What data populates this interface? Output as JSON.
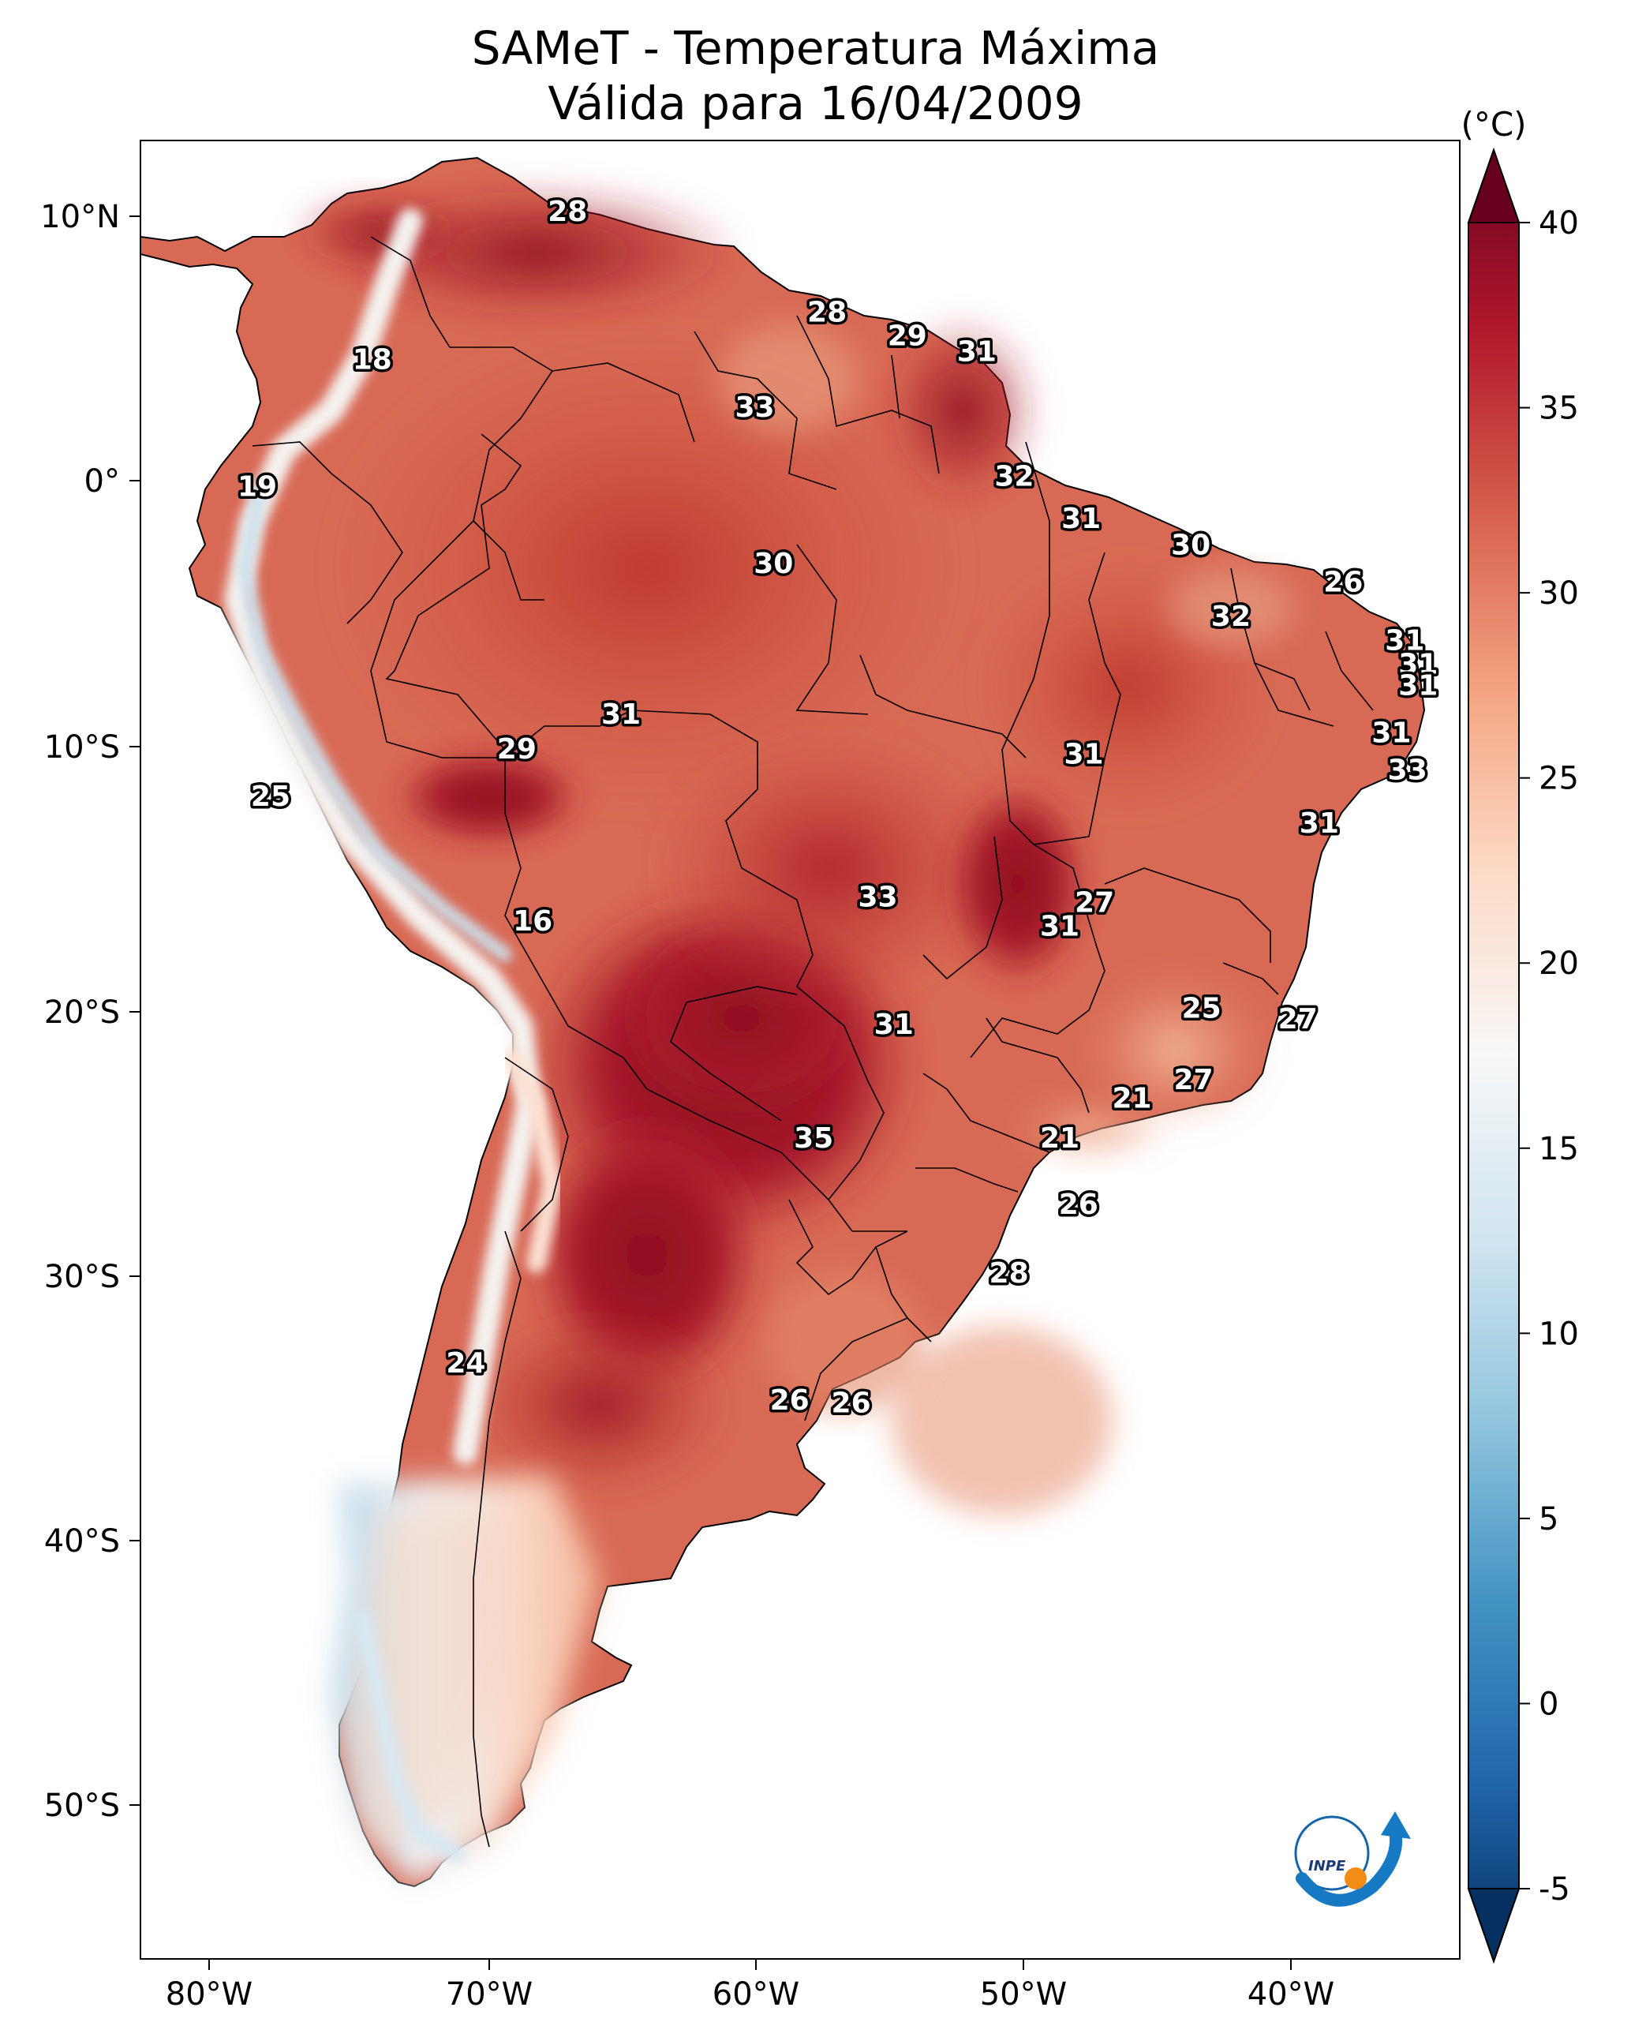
{
  "title": {
    "line1": "SAMeT - Temperatura Máxima",
    "line2": "Válida para 16/04/2009"
  },
  "axes": {
    "lon_ticks": [
      "80°W",
      "70°W",
      "60°W",
      "50°W",
      "40°W"
    ],
    "lat_ticks": [
      "10°N",
      "0°",
      "10°S",
      "20°S",
      "30°S",
      "40°S",
      "50°S"
    ]
  },
  "colorbar": {
    "unit": "(°C)",
    "ticks": [
      "40",
      "35",
      "30",
      "25",
      "20",
      "15",
      "10",
      "5",
      "0",
      "-5"
    ],
    "min": -5,
    "max": 40,
    "colors": [
      "#053061",
      "#2166ac",
      "#4393c3",
      "#92c5de",
      "#d1e5f0",
      "#f7f7f7",
      "#fddbc7",
      "#f4a582",
      "#d6604d",
      "#b2182b",
      "#67001f"
    ]
  },
  "contour_labels": [
    {
      "text": "28",
      "lon": -66.6,
      "lat": 10.2
    },
    {
      "text": "28",
      "lon": -56.9,
      "lat": 6.4
    },
    {
      "text": "29",
      "lon": -53.9,
      "lat": 5.5
    },
    {
      "text": "31",
      "lon": -51.3,
      "lat": 4.9
    },
    {
      "text": "18",
      "lon": -73.9,
      "lat": 4.6
    },
    {
      "text": "33",
      "lon": -59.6,
      "lat": 2.8
    },
    {
      "text": "32",
      "lon": -49.9,
      "lat": 0.2
    },
    {
      "text": "19",
      "lon": -78.2,
      "lat": -0.2
    },
    {
      "text": "31",
      "lon": -47.4,
      "lat": -1.4
    },
    {
      "text": "30",
      "lon": -43.3,
      "lat": -2.4
    },
    {
      "text": "30",
      "lon": -58.9,
      "lat": -3.1
    },
    {
      "text": "26",
      "lon": -37.6,
      "lat": -3.8
    },
    {
      "text": "32",
      "lon": -41.8,
      "lat": -5.1
    },
    {
      "text": "31",
      "lon": -35.3,
      "lat": -6.0
    },
    {
      "text": "31",
      "lon": -34.8,
      "lat": -6.9
    },
    {
      "text": "31",
      "lon": -34.8,
      "lat": -7.7
    },
    {
      "text": "31",
      "lon": -64.6,
      "lat": -8.8
    },
    {
      "text": "31",
      "lon": -35.8,
      "lat": -9.5
    },
    {
      "text": "29",
      "lon": -68.5,
      "lat": -10.1
    },
    {
      "text": "31",
      "lon": -47.3,
      "lat": -10.3
    },
    {
      "text": "33",
      "lon": -35.2,
      "lat": -10.9
    },
    {
      "text": "25",
      "lon": -77.7,
      "lat": -11.9
    },
    {
      "text": "31",
      "lon": -38.5,
      "lat": -12.9
    },
    {
      "text": "33",
      "lon": -55.0,
      "lat": -15.7
    },
    {
      "text": "27",
      "lon": -46.9,
      "lat": -15.9
    },
    {
      "text": "16",
      "lon": -67.9,
      "lat": -16.6
    },
    {
      "text": "31",
      "lon": -48.2,
      "lat": -16.8
    },
    {
      "text": "25",
      "lon": -42.9,
      "lat": -19.9
    },
    {
      "text": "27",
      "lon": -39.3,
      "lat": -20.3
    },
    {
      "text": "31",
      "lon": -54.4,
      "lat": -20.5
    },
    {
      "text": "27",
      "lon": -43.2,
      "lat": -22.6
    },
    {
      "text": "21",
      "lon": -45.5,
      "lat": -23.3
    },
    {
      "text": "35",
      "lon": -57.4,
      "lat": -24.8
    },
    {
      "text": "21",
      "lon": -48.2,
      "lat": -24.8
    },
    {
      "text": "26",
      "lon": -47.5,
      "lat": -27.3
    },
    {
      "text": "28",
      "lon": -50.1,
      "lat": -29.9
    },
    {
      "text": "24",
      "lon": -70.4,
      "lat": -33.3
    },
    {
      "text": "26",
      "lon": -58.3,
      "lat": -34.7
    },
    {
      "text": "26",
      "lon": -56.0,
      "lat": -34.8
    }
  ],
  "logo": {
    "text": "INPE"
  }
}
